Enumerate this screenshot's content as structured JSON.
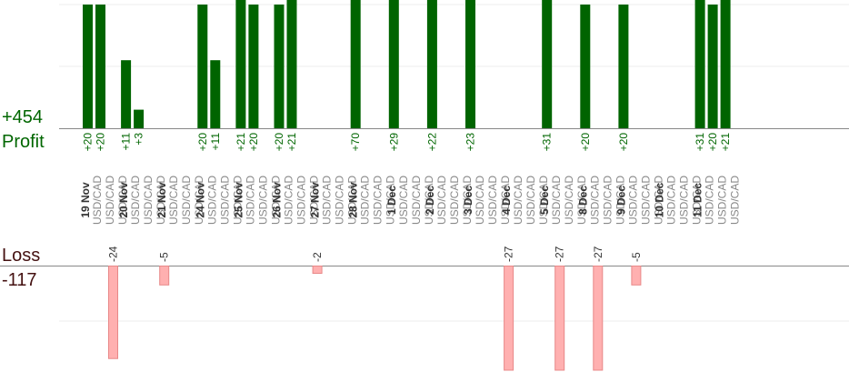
{
  "summary": {
    "profit_total": "+454",
    "profit_label": "Profit",
    "loss_label": "Loss",
    "loss_total": "-117"
  },
  "colors": {
    "profit_bar": "#006400",
    "profit_text": "#006600",
    "loss_bar": "#ffb0b0",
    "loss_bar_edge": "#e88888",
    "loss_text": "#333333",
    "date_text": "#333333",
    "pair_text": "#888888",
    "grid": "#eeeeee",
    "axis": "#888888"
  },
  "chart_data": {
    "type": "bar",
    "symbol": "USD/CAD",
    "profit_axis_top": 20,
    "loss_axis_bottom": -27,
    "days": [
      {
        "date": "19 Nov",
        "trades": [
          20,
          20,
          -24
        ]
      },
      {
        "date": "20 Nov",
        "trades": [
          11,
          3
        ]
      },
      {
        "date": "21 Nov",
        "trades": [
          -5
        ]
      },
      {
        "date": "24 Nov",
        "trades": [
          20,
          11
        ]
      },
      {
        "date": "25 Nov",
        "trades": [
          21,
          20
        ]
      },
      {
        "date": "26 Nov",
        "trades": [
          20,
          21
        ]
      },
      {
        "date": "27 Nov",
        "trades": [
          -2
        ]
      },
      {
        "date": "28 Nov",
        "trades": [
          70
        ]
      },
      {
        "date": "1 Dec",
        "trades": [
          29
        ]
      },
      {
        "date": "2 Dec",
        "trades": [
          22
        ]
      },
      {
        "date": "3 Dec",
        "trades": [
          23
        ]
      },
      {
        "date": "4 Dec",
        "trades": [
          -27
        ]
      },
      {
        "date": "5 Dec",
        "trades": [
          31,
          -27
        ]
      },
      {
        "date": "8 Dec",
        "trades": [
          20,
          -27
        ]
      },
      {
        "date": "9 Dec",
        "trades": [
          20,
          -5
        ]
      },
      {
        "date": "10 Dec",
        "trades": []
      },
      {
        "date": "11 Dec",
        "trades": [
          31,
          20,
          21
        ]
      }
    ]
  }
}
